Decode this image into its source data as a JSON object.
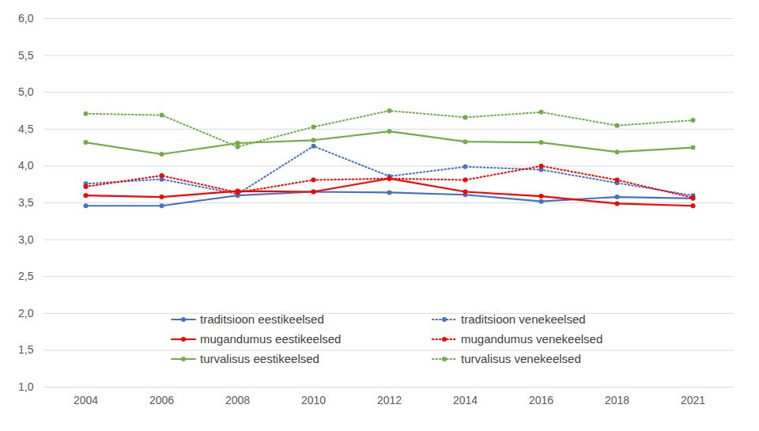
{
  "chart_data": {
    "type": "line",
    "categories": [
      "2004",
      "2006",
      "2008",
      "2010",
      "2012",
      "2014",
      "2016",
      "2018",
      "2021"
    ],
    "series": [
      {
        "name": "traditsioon eestikeelsed",
        "color": "#4472c4",
        "line_style": "solid",
        "marker": "circle",
        "values": [
          3.46,
          3.46,
          3.6,
          3.65,
          3.64,
          3.61,
          3.52,
          3.58,
          3.56
        ]
      },
      {
        "name": "traditsioon venekeelsed",
        "color": "#4472c4",
        "line_style": "dotted",
        "marker": "circle",
        "values": [
          3.76,
          3.82,
          3.62,
          4.27,
          3.86,
          3.99,
          3.95,
          3.77,
          3.6
        ]
      },
      {
        "name": "mugandumus eestikeelsed",
        "color": "#ff0000",
        "line_style": "solid",
        "marker": "circle",
        "values": [
          3.6,
          3.58,
          3.66,
          3.65,
          3.83,
          3.65,
          3.59,
          3.49,
          3.46
        ]
      },
      {
        "name": "mugandumus venekeelsed",
        "color": "#ff0000",
        "line_style": "dotted",
        "marker": "circle",
        "values": [
          3.72,
          3.87,
          3.64,
          3.81,
          3.83,
          3.81,
          4.0,
          3.81,
          3.57
        ]
      },
      {
        "name": "turvalisus eestikeelsed",
        "color": "#70ad47",
        "line_style": "solid",
        "marker": "circle",
        "values": [
          4.32,
          4.16,
          4.31,
          4.35,
          4.47,
          4.33,
          4.32,
          4.19,
          4.25
        ]
      },
      {
        "name": "turvalisus venekeelsed",
        "color": "#70ad47",
        "line_style": "dotted",
        "marker": "circle",
        "values": [
          4.71,
          4.69,
          4.26,
          4.53,
          4.75,
          4.66,
          4.73,
          4.55,
          4.62
        ]
      }
    ],
    "ylim": [
      1,
      6
    ],
    "yticks": [
      {
        "value": 1,
        "label": "1,0"
      },
      {
        "value": 1.5,
        "label": "1,5"
      },
      {
        "value": 2,
        "label": "2,0"
      },
      {
        "value": 2.5,
        "label": "2,5"
      },
      {
        "value": 3,
        "label": "3,0"
      },
      {
        "value": 3.5,
        "label": "3,5"
      },
      {
        "value": 4,
        "label": "4,0"
      },
      {
        "value": 4.5,
        "label": "4,5"
      },
      {
        "value": 5,
        "label": "5,0"
      },
      {
        "value": 5.5,
        "label": "5,5"
      },
      {
        "value": 6,
        "label": "6,0"
      }
    ],
    "grid": true,
    "legend": "bottom"
  }
}
